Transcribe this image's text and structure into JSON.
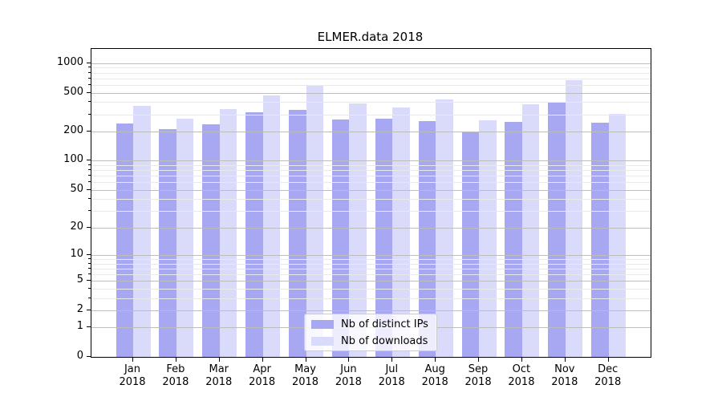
{
  "title": "ELMER.data 2018",
  "colors": {
    "distinct_ips_bar": "#a7a7f2",
    "downloads_bar": "#dadafa",
    "grid_major": "#bdbdbd",
    "grid_minor": "#e9e9e9",
    "axis": "#000000",
    "legend_border": "#cccccc"
  },
  "chart_data": {
    "type": "bar",
    "title": "ELMER.data 2018",
    "xlabel": "",
    "ylabel": "",
    "scale": "log1p",
    "ylim": [
      0,
      1400
    ],
    "grid": true,
    "legend_position": "lower-center",
    "categories": [
      "Jan 2018",
      "Feb 2018",
      "Mar 2018",
      "Apr 2018",
      "May 2018",
      "Jun 2018",
      "Jul 2018",
      "Aug 2018",
      "Sep 2018",
      "Oct 2018",
      "Nov 2018",
      "Dec 2018"
    ],
    "series": [
      {
        "name": "Nb of distinct IPs",
        "color_key": "distinct_ips_bar",
        "values": [
          240,
          212,
          237,
          315,
          330,
          264,
          268,
          257,
          198,
          250,
          395,
          246
        ]
      },
      {
        "name": "Nb of downloads",
        "color_key": "downloads_bar",
        "values": [
          366,
          272,
          340,
          464,
          585,
          391,
          351,
          428,
          261,
          380,
          665,
          304
        ]
      }
    ],
    "yticks": [
      0,
      1,
      2,
      5,
      10,
      20,
      50,
      100,
      200,
      500,
      1000
    ],
    "minor_gridlines": [
      3,
      4,
      6,
      7,
      8,
      9,
      30,
      40,
      60,
      70,
      80,
      90,
      300,
      400,
      600,
      700,
      800,
      900
    ]
  }
}
